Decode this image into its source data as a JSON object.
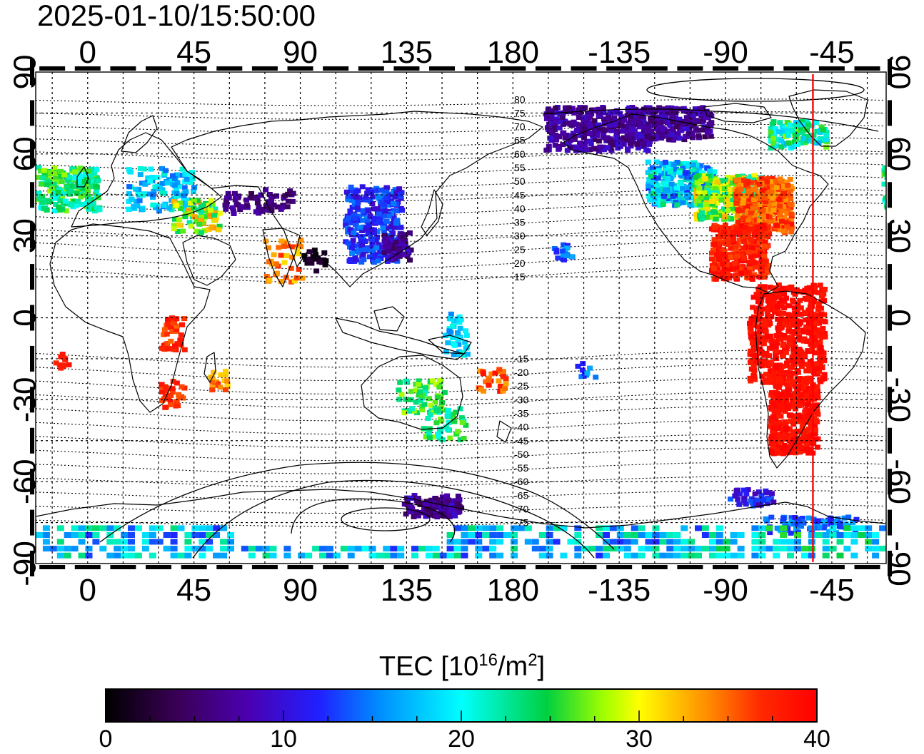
{
  "timestamp": "2025-01-10/15:50:00",
  "map": {
    "lon_ticks": [
      "0",
      "45",
      "90",
      "135",
      "180",
      "-135",
      "-90",
      "-45"
    ],
    "lat_ticks": [
      "90",
      "60",
      "30",
      "0",
      "-30",
      "-60",
      "-90"
    ],
    "mag_lat_labels": [
      "80",
      "75",
      "70",
      "65",
      "60",
      "55",
      "50",
      "45",
      "40",
      "35",
      "30",
      "25",
      "20",
      "15",
      "-15",
      "-20",
      "-25",
      "-30",
      "-35",
      "-40",
      "-45",
      "-50",
      "-55",
      "-60",
      "-65",
      "-70",
      "-75"
    ],
    "terminator_lon_deg": -53
  },
  "colorbar": {
    "title_main": "TEC  [10",
    "title_exp1": "16",
    "title_mid": "/m",
    "title_exp2": "2",
    "title_end": "]",
    "ticks": [
      "0",
      "10",
      "20",
      "30",
      "40"
    ],
    "min": 0,
    "max": 40
  }
}
